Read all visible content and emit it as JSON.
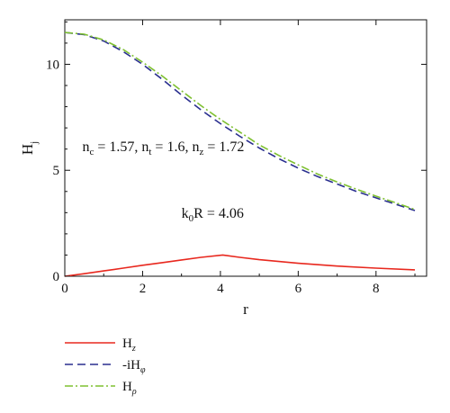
{
  "chart_data": {
    "type": "line",
    "title": "",
    "xlabel": "r",
    "ylabel": {
      "main": "H",
      "sub": "j"
    },
    "xlim": [
      0,
      9.3
    ],
    "ylim": [
      0,
      12.1
    ],
    "xticks": [
      0,
      2,
      4,
      6,
      8
    ],
    "yticks": [
      0,
      5,
      10
    ],
    "grid": false,
    "legend_placement": "below-left",
    "annotations": [
      {
        "id": "indices",
        "parts": [
          {
            "t": "n"
          },
          {
            "t": "c",
            "sub": true
          },
          {
            "t": " = 1.57, n"
          },
          {
            "t": "t",
            "sub": true
          },
          {
            "t": " = 1.6, n"
          },
          {
            "t": "z",
            "sub": true
          },
          {
            "t": " = 1.72"
          }
        ],
        "at": [
          0.45,
          5.9
        ]
      },
      {
        "id": "k0r",
        "parts": [
          {
            "t": "k"
          },
          {
            "t": "0",
            "sub": true
          },
          {
            "t": "R = 4.06"
          }
        ],
        "at": [
          3.0,
          2.75
        ]
      }
    ],
    "series": [
      {
        "key": "hz",
        "label_main": "H",
        "label_sub": "z",
        "color": "#e8281e",
        "dash": "none",
        "x": [
          0,
          0.5,
          1,
          1.5,
          2,
          2.5,
          3,
          3.5,
          4.06,
          4.5,
          5,
          6,
          7,
          8,
          9
        ],
        "y": [
          0,
          0.12,
          0.25,
          0.38,
          0.52,
          0.64,
          0.77,
          0.89,
          1.0,
          0.89,
          0.78,
          0.61,
          0.48,
          0.38,
          0.3
        ]
      },
      {
        "key": "hphi",
        "label_main": "-iH",
        "label_sub": "φ",
        "color": "#2a2f8f",
        "dash": "9,5",
        "x": [
          0,
          0.5,
          1,
          1.5,
          2,
          2.5,
          3,
          3.5,
          4,
          4.5,
          5,
          5.5,
          6,
          6.5,
          7,
          7.5,
          8,
          8.5,
          9
        ],
        "y": [
          11.5,
          11.4,
          11.1,
          10.6,
          10.0,
          9.3,
          8.55,
          7.85,
          7.2,
          6.6,
          6.05,
          5.55,
          5.1,
          4.7,
          4.35,
          4.0,
          3.7,
          3.4,
          3.1
        ]
      },
      {
        "key": "hrho",
        "label_main": "H",
        "label_sub": "ρ",
        "color": "#7ec030",
        "dash": "9,3,2,3",
        "x": [
          0,
          0.5,
          1,
          1.5,
          2,
          2.5,
          3,
          3.5,
          4,
          4.5,
          5,
          5.5,
          6,
          6.5,
          7,
          7.5,
          8,
          8.5,
          9
        ],
        "y": [
          11.5,
          11.42,
          11.15,
          10.7,
          10.1,
          9.45,
          8.75,
          8.05,
          7.4,
          6.8,
          6.2,
          5.7,
          5.25,
          4.82,
          4.45,
          4.1,
          3.78,
          3.47,
          3.15
        ]
      }
    ]
  }
}
